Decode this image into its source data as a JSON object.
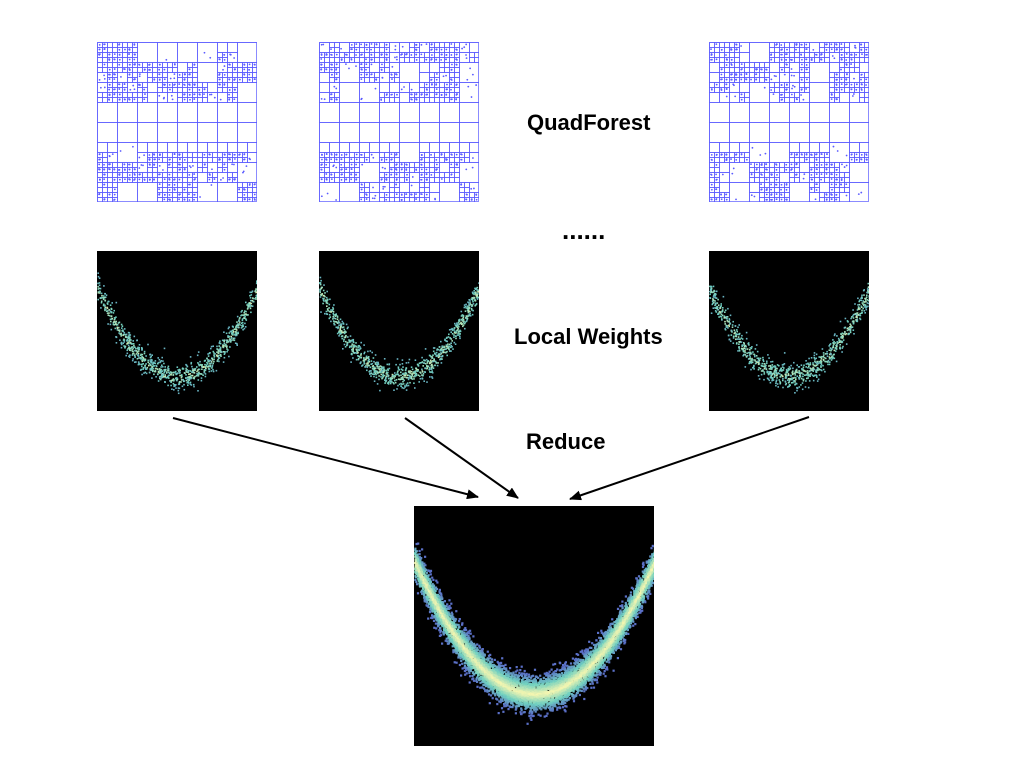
{
  "labels": {
    "quadforest": "QuadForest",
    "ellipsis": "......",
    "local_weights": "Local Weights",
    "reduce": "Reduce"
  },
  "colors": {
    "grid_line": "#5b5bff",
    "panel_background": "#000000",
    "scatter_low": "#5a6fc6",
    "scatter_mid": "#6fd0c0",
    "scatter_high": "#f6f6b0",
    "arrow": "#000000"
  },
  "panels": {
    "quadforest_count_shown": 3,
    "local_weights_count_shown": 3
  }
}
